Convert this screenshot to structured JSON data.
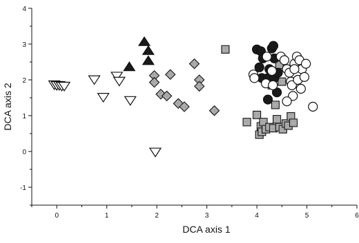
{
  "chart_data": {
    "type": "scatter",
    "title": "",
    "xlabel": "DCA axis 1",
    "ylabel": "DCA axis 2",
    "xlim": [
      -0.5,
      6
    ],
    "ylim": [
      -1.5,
      4
    ],
    "xticks": [
      "0",
      "1",
      "2",
      "3",
      "4",
      "5",
      "6"
    ],
    "yticks": [
      "-1",
      "0",
      "1",
      "2",
      "3",
      "4"
    ],
    "grid": false,
    "legend": "none",
    "series": [
      {
        "marker": "triangle-down-open",
        "color": "#ffffff",
        "stroke": "#111111",
        "points": [
          [
            -0.05,
            1.88
          ],
          [
            0.0,
            1.86
          ],
          [
            0.05,
            1.86
          ],
          [
            0.1,
            1.84
          ],
          [
            0.15,
            1.84
          ],
          [
            0.75,
            2.02
          ],
          [
            0.93,
            1.53
          ],
          [
            1.2,
            2.12
          ],
          [
            1.25,
            1.98
          ],
          [
            1.47,
            1.44
          ],
          [
            1.97,
            0.0
          ]
        ]
      },
      {
        "marker": "triangle-up-filled",
        "color": "#1a1a1a",
        "stroke": "#111111",
        "points": [
          [
            1.45,
            2.35
          ],
          [
            1.75,
            3.05
          ],
          [
            1.83,
            2.8
          ],
          [
            1.83,
            2.52
          ]
        ]
      },
      {
        "marker": "diamond-shaded",
        "color": "#a8a8a8",
        "stroke": "#222222",
        "points": [
          [
            1.95,
            2.12
          ],
          [
            1.95,
            1.93
          ],
          [
            2.08,
            1.6
          ],
          [
            2.2,
            1.55
          ],
          [
            2.27,
            2.15
          ],
          [
            2.43,
            1.34
          ],
          [
            2.55,
            1.25
          ],
          [
            2.75,
            2.45
          ],
          [
            2.85,
            2.0
          ],
          [
            2.85,
            1.82
          ],
          [
            3.15,
            1.14
          ]
        ]
      },
      {
        "marker": "square-shaded",
        "color": "#a8a8a8",
        "stroke": "#222222",
        "points": [
          [
            3.37,
            2.85
          ],
          [
            3.8,
            0.82
          ],
          [
            4.0,
            1.02
          ],
          [
            4.05,
            0.47
          ],
          [
            4.08,
            0.7
          ],
          [
            4.1,
            0.55
          ],
          [
            4.13,
            0.82
          ],
          [
            4.18,
            0.62
          ],
          [
            4.25,
            0.68
          ],
          [
            4.33,
            0.65
          ],
          [
            4.37,
            1.3
          ],
          [
            4.4,
            0.9
          ],
          [
            4.45,
            0.68
          ],
          [
            4.52,
            0.62
          ],
          [
            4.58,
            0.78
          ],
          [
            4.63,
            0.72
          ],
          [
            4.68,
            0.98
          ],
          [
            4.73,
            0.8
          ],
          [
            4.3,
            1.85
          ],
          [
            4.38,
            2.6
          ],
          [
            4.45,
            2.42
          ],
          [
            4.5,
            1.95
          ]
        ]
      },
      {
        "marker": "circle-filled",
        "color": "#1a1a1a",
        "stroke": "#111111",
        "points": [
          [
            4.0,
            2.85
          ],
          [
            4.05,
            2.35
          ],
          [
            4.08,
            2.8
          ],
          [
            4.1,
            2.05
          ],
          [
            4.12,
            2.6
          ],
          [
            4.22,
            2.05
          ],
          [
            4.22,
            1.45
          ],
          [
            4.25,
            2.3
          ],
          [
            4.3,
            2.88
          ],
          [
            4.33,
            2.95
          ],
          [
            4.35,
            2.6
          ],
          [
            4.35,
            2.05
          ],
          [
            4.4,
            1.65
          ],
          [
            4.42,
            2.2
          ]
        ]
      },
      {
        "marker": "circle-open",
        "color": "#ffffff",
        "stroke": "#111111",
        "points": [
          [
            3.93,
            2.15
          ],
          [
            3.95,
            2.05
          ],
          [
            4.18,
            1.9
          ],
          [
            4.2,
            2.65
          ],
          [
            4.3,
            2.25
          ],
          [
            4.32,
            1.85
          ],
          [
            4.48,
            2.65
          ],
          [
            4.55,
            2.55
          ],
          [
            4.6,
            2.3
          ],
          [
            4.65,
            2.2
          ],
          [
            4.68,
            1.95
          ],
          [
            4.7,
            1.85
          ],
          [
            4.72,
            1.55
          ],
          [
            4.75,
            2.45
          ],
          [
            4.8,
            2.65
          ],
          [
            4.82,
            2.0
          ],
          [
            4.85,
            2.55
          ],
          [
            4.9,
            2.3
          ],
          [
            4.95,
            2.08
          ],
          [
            4.98,
            2.45
          ],
          [
            5.12,
            1.25
          ],
          [
            4.88,
            1.75
          ],
          [
            4.6,
            1.4
          ],
          [
            4.75,
            2.3
          ]
        ]
      }
    ]
  }
}
